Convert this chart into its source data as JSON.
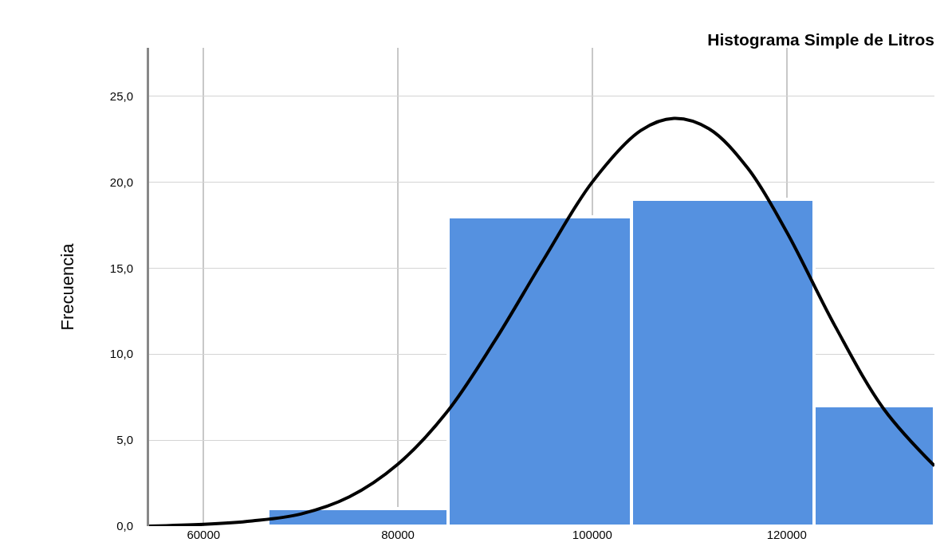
{
  "chart_data": {
    "type": "histogram",
    "title": "Histograma Simple de Litros",
    "ylabel": "Frecuencia",
    "bins": [
      66600,
      85200,
      104000,
      122800,
      135200
    ],
    "values": [
      1,
      18,
      19,
      7
    ],
    "color": "#5591e0",
    "series": [
      {
        "type": "line",
        "color": "#000000",
        "x": [
          54400,
          60000,
          65000,
          70000,
          75000,
          80000,
          85000,
          90000,
          95000,
          100000,
          105000,
          108400,
          112000,
          116000,
          120000,
          125000,
          130000,
          135200
        ],
        "values": [
          0,
          0.1,
          0.3,
          0.7,
          1.7,
          3.6,
          6.6,
          10.8,
          15.5,
          20.0,
          23.0,
          23.7,
          23.1,
          20.8,
          17.1,
          11.6,
          6.8,
          3.5
        ]
      }
    ],
    "xlim": [
      54400,
      135200
    ],
    "xticks": [
      60000,
      80000,
      100000,
      120000
    ],
    "ylim": [
      0,
      27.8
    ],
    "yticks": [
      {
        "value": 0,
        "label": "0,0"
      },
      {
        "value": 5,
        "label": "5,0"
      },
      {
        "value": 10,
        "label": "10,0"
      },
      {
        "value": 15,
        "label": "15,0"
      },
      {
        "value": 20,
        "label": "20,0"
      },
      {
        "value": 25,
        "label": "25,0"
      }
    ],
    "grid": true
  }
}
